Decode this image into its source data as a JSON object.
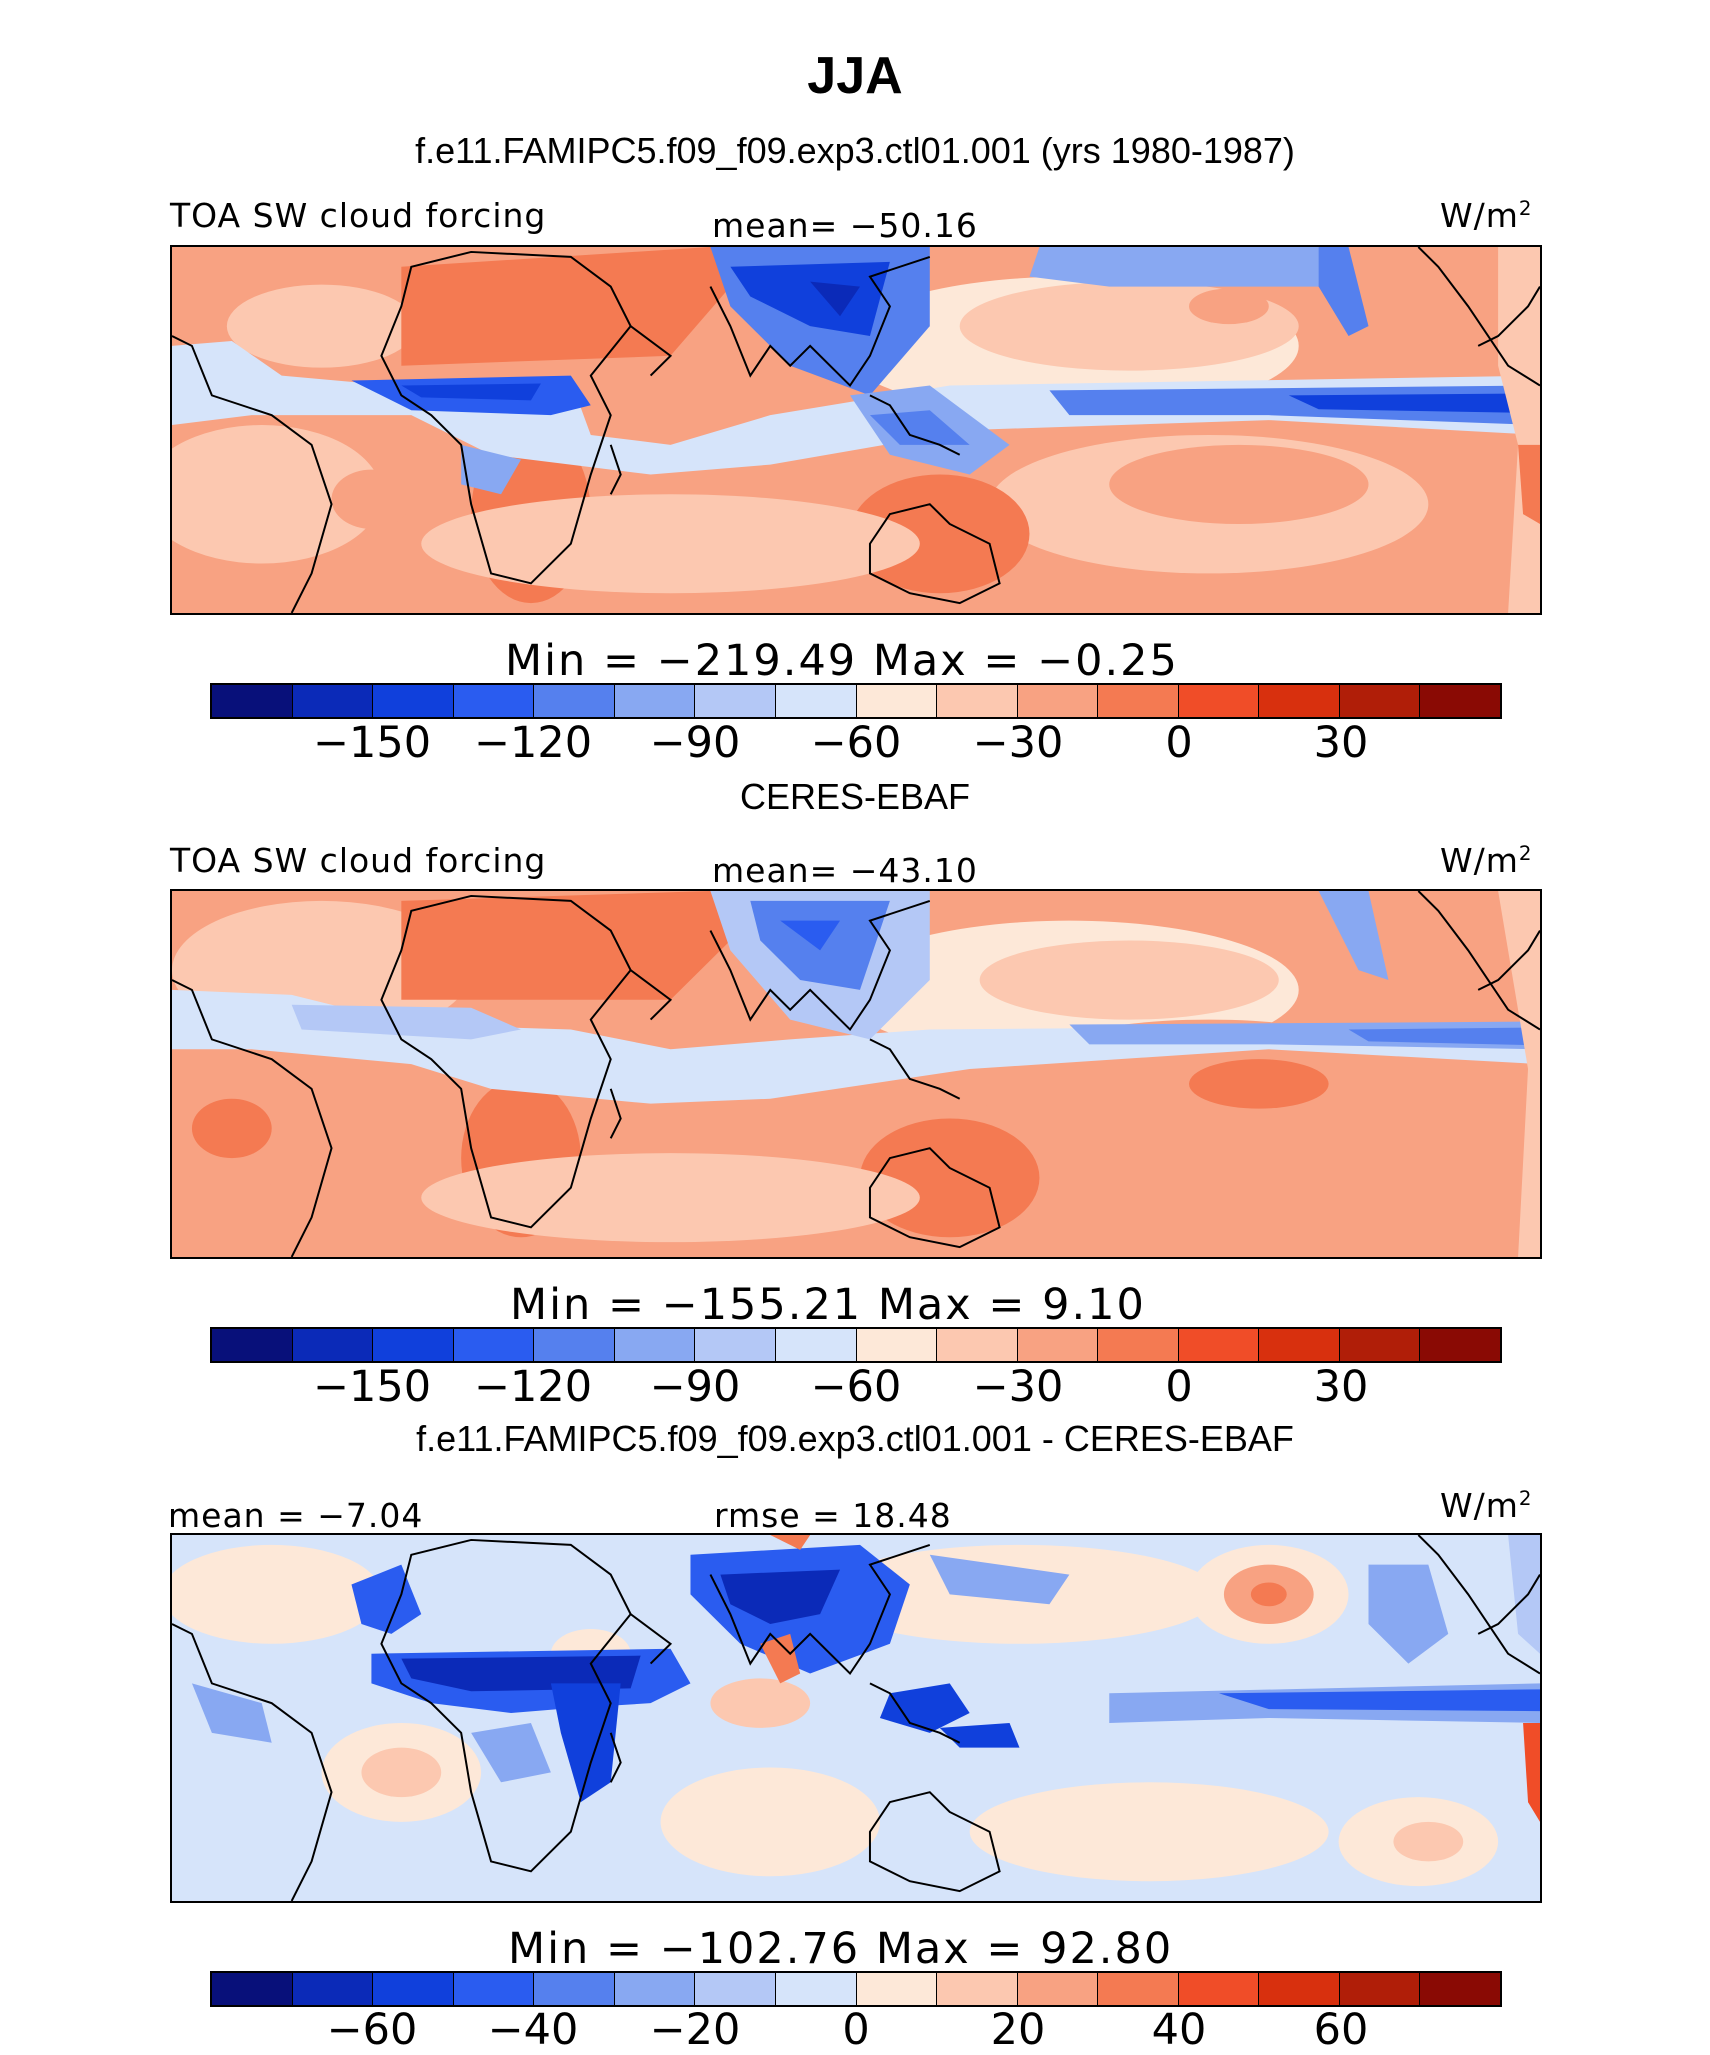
{
  "title": "JJA",
  "panels": [
    {
      "heading": "f.e11.FAMIPC5.f09_f09.exp3.ctl01.001 (yrs 1980-1987)",
      "left_label": "TOA SW cloud forcing",
      "center_label": "mean= −50.16",
      "units": "W/m",
      "units_sup": "2",
      "minmax": "Min  =  −219.49  Max  =    −0.25",
      "map_desc": "model"
    },
    {
      "heading": "CERES-EBAF",
      "left_label": "TOA SW cloud forcing",
      "center_label": "mean= −43.10",
      "units": "W/m",
      "units_sup": "2",
      "minmax": "Min  =  −155.21  Max  =     9.10",
      "map_desc": "obs"
    },
    {
      "heading": "f.e11.FAMIPC5.f09_f09.exp3.ctl01.001 - CERES-EBAF",
      "left_label": "mean  =   −7.04",
      "center_label": "rmse  =   18.48",
      "units": "W/m",
      "units_sup": "2",
      "minmax": "Min  =  −102.76  Max  =    92.80",
      "map_desc": "diff"
    }
  ],
  "colorbar_colors": [
    "#08107a",
    "#0b2ab8",
    "#1040dc",
    "#2a5cf0",
    "#5580ee",
    "#88a8f2",
    "#b4c8f6",
    "#d6e4fa",
    "#fde8d8",
    "#fcc8b0",
    "#f8a282",
    "#f47a52",
    "#f04d28",
    "#d8300e",
    "#b01e08",
    "#8a0a04"
  ],
  "colorbar_ticks_abs": [
    "−150",
    "−120",
    "−90",
    "−60",
    "−30",
    "0",
    "30"
  ],
  "colorbar_ticks_diff": [
    "−60",
    "−40",
    "−20",
    "0",
    "20",
    "40",
    "60"
  ]
}
